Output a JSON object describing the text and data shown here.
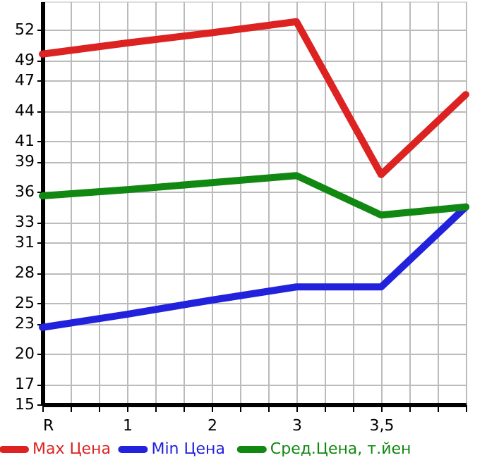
{
  "chart_data": {
    "type": "line",
    "categories": [
      "R",
      "1",
      "2",
      "3",
      "3,5",
      null
    ],
    "series": [
      {
        "name": "Max Цена",
        "color": "#dd2222",
        "values": [
          49.6,
          50.7,
          51.7,
          52.8,
          37.7,
          45.6
        ]
      },
      {
        "name": "Min Цена",
        "color": "#2222dd",
        "values": [
          22.6,
          23.9,
          25.3,
          26.6,
          26.6,
          34.5
        ]
      },
      {
        "name": "Сред.Цена, т.йен",
        "color": "#118811",
        "values": [
          35.6,
          36.2,
          36.9,
          37.6,
          33.7,
          34.5
        ]
      }
    ],
    "ylim": [
      15,
      54.8
    ],
    "yticks": [
      15,
      17,
      20,
      23,
      25,
      28,
      31,
      33,
      36,
      39,
      41,
      44,
      47,
      49,
      52
    ],
    "grid": true,
    "legend": "bottom",
    "marker": "none",
    "line_style": "solid"
  }
}
